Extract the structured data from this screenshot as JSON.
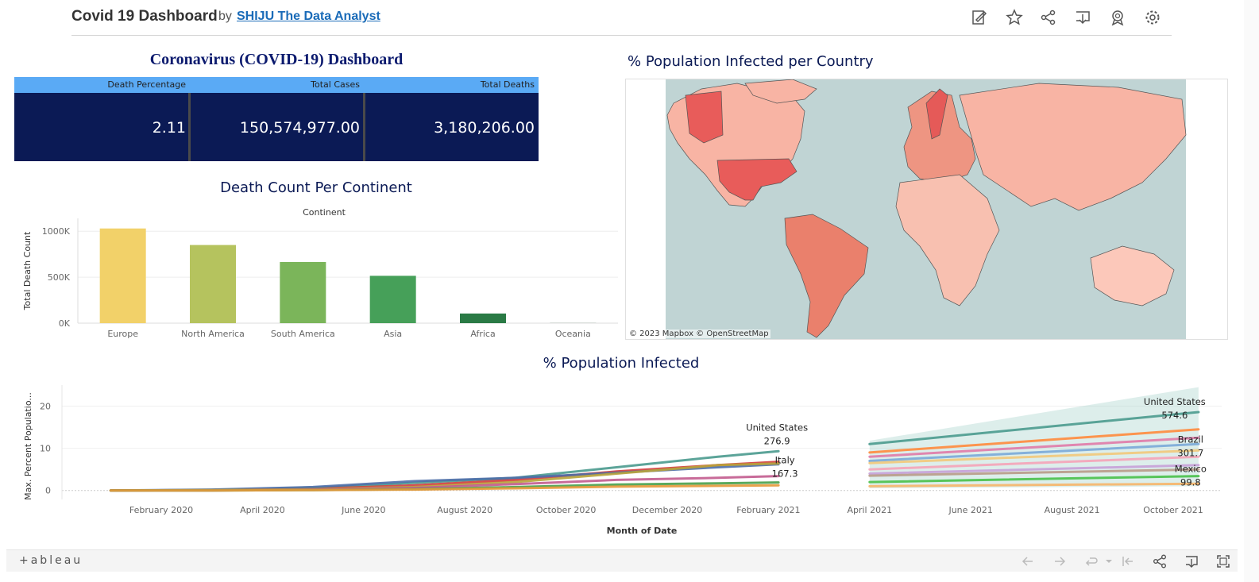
{
  "header": {
    "title": "Covid 19 Dashboard",
    "by": "by",
    "author": "SHIJU The Data Analyst",
    "icons": [
      "edit-icon",
      "favorite-star-icon",
      "share-icon",
      "download-icon",
      "badge-icon",
      "settings-gear-icon"
    ]
  },
  "kpi": {
    "title": "Coronavirus (COVID-19) Dashboard",
    "columns": [
      "Death Percentage",
      "Total Cases",
      "Total Deaths"
    ],
    "values": [
      "2.11",
      "150,574,977.00",
      "3,180,206.00"
    ],
    "header_color": "#5aaaf5",
    "body_color": "#0b1a55"
  },
  "map": {
    "title": "% Population Infected per Country",
    "attribution": "© 2023 Mapbox  © OpenStreetMap"
  },
  "line": {
    "title": "% Population Infected"
  },
  "footer": {
    "logo": "+ableau",
    "icons": [
      "undo-icon",
      "redo-icon",
      "revert-icon",
      "revert-all-icon",
      "share-icon",
      "download-icon",
      "fullscreen-icon"
    ]
  },
  "chart_data": [
    {
      "type": "bar",
      "title": "Death Count Per Continent",
      "column_header": "Continent",
      "ylabel": "Total Death Count",
      "xlabel": "",
      "categories": [
        "Europe",
        "North America",
        "South America",
        "Asia",
        "Africa",
        "Oceania"
      ],
      "values": [
        1030000,
        850000,
        665000,
        515000,
        105000,
        1000
      ],
      "colors": [
        "#f2d169",
        "#b5c35e",
        "#7bb55a",
        "#46a059",
        "#2a7a45",
        "#1e5a35"
      ],
      "y_ticks": [
        0,
        500000,
        1000000
      ],
      "y_tick_labels": [
        "0K",
        "500K",
        "1000K"
      ],
      "ylim": [
        0,
        1140000
      ],
      "grid": true
    },
    {
      "type": "line",
      "title": "% Population Infected",
      "xlabel": "Month of Date",
      "ylabel": "Max. Percent Populatio...",
      "x_ticks": [
        "February 2020",
        "April 2020",
        "June 2020",
        "August 2020",
        "October 2020",
        "December 2020",
        "February 2021",
        "April 2021",
        "June 2021",
        "August 2021",
        "October 2021"
      ],
      "y_ticks": [
        0,
        10,
        20
      ],
      "ylim": [
        -1,
        25
      ],
      "grid": true,
      "series": [
        {
          "x": [
            0,
            2,
            4,
            6,
            8,
            10,
            12,
            13.2
          ],
          "y": [
            0,
            0.1,
            0.6,
            1.8,
            3,
            5.5,
            8,
            9.3
          ],
          "color": "#4a9a8e"
        },
        {
          "x": [
            0,
            2,
            4,
            6,
            8,
            10,
            12,
            13.2
          ],
          "y": [
            0,
            0.1,
            0.4,
            1.2,
            2.5,
            4.5,
            6,
            6.8
          ],
          "color": "#d33b3b"
        },
        {
          "x": [
            0,
            2,
            4,
            6,
            8,
            10,
            12,
            13.2
          ],
          "y": [
            0,
            0.2,
            0.8,
            2.2,
            3,
            4.2,
            5.5,
            6.2
          ],
          "color": "#4c6ea8"
        },
        {
          "x": [
            0,
            2,
            4,
            6,
            8,
            10,
            12,
            13.2
          ],
          "y": [
            0,
            0.1,
            0.3,
            0.8,
            2,
            4,
            6,
            6.4
          ],
          "color": "#b8a33a"
        },
        {
          "x": [
            0,
            2,
            4,
            6,
            8,
            10,
            12,
            13.2
          ],
          "y": [
            0,
            0.0,
            0.2,
            0.6,
            1.5,
            2.5,
            3,
            3.4
          ],
          "color": "#c25b8e"
        },
        {
          "x": [
            0,
            2,
            4,
            6,
            8,
            10,
            12,
            13.2
          ],
          "y": [
            0,
            0.0,
            0.1,
            0.3,
            0.8,
            1.4,
            1.7,
            1.9
          ],
          "color": "#48a04a"
        },
        {
          "x": [
            0,
            2,
            4,
            6,
            8,
            10,
            12,
            13.2
          ],
          "y": [
            0,
            0.0,
            0.1,
            0.2,
            0.5,
            0.9,
            1.1,
            1.2
          ],
          "color": "#e59838"
        },
        {
          "x": [
            15,
            21.5
          ],
          "y": [
            11,
            18.6
          ],
          "color": "#4a9a8e"
        },
        {
          "x": [
            15,
            21.5
          ],
          "y": [
            9,
            14.5
          ],
          "color": "#ff8a3c"
        },
        {
          "x": [
            15,
            21.5
          ],
          "y": [
            8,
            12.5
          ],
          "color": "#e07aa8"
        },
        {
          "x": [
            15,
            21.5
          ],
          "y": [
            7,
            11
          ],
          "color": "#7aa8d8"
        },
        {
          "x": [
            15,
            21.5
          ],
          "y": [
            6.5,
            9.5
          ],
          "color": "#f2c87a"
        },
        {
          "x": [
            15,
            21.5
          ],
          "y": [
            5,
            8
          ],
          "color": "#f5a3b8"
        },
        {
          "x": [
            15,
            21.5
          ],
          "y": [
            4,
            6
          ],
          "color": "#c7a0d8"
        },
        {
          "x": [
            15,
            21.5
          ],
          "y": [
            3.5,
            5
          ],
          "color": "#b89a88"
        },
        {
          "x": [
            15,
            21.5
          ],
          "y": [
            2,
            3.4
          ],
          "color": "#48c04a"
        },
        {
          "x": [
            15,
            21.5
          ],
          "y": [
            1,
            1.6
          ],
          "color": "#f6b56a"
        }
      ],
      "annotations": [
        {
          "text": "United States",
          "value": "276.9"
        },
        {
          "text": "Italy",
          "value": "167.3"
        },
        {
          "text": "United States",
          "value": "574.6"
        },
        {
          "text": "Brazil",
          "value": "301.7"
        },
        {
          "text": "Mexico",
          "value": "99.8"
        }
      ]
    }
  ]
}
